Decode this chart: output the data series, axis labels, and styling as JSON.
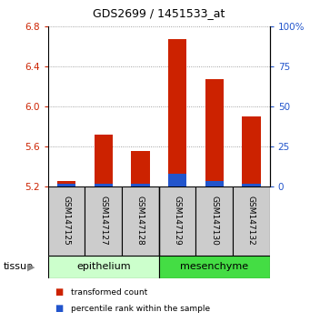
{
  "title": "GDS2699 / 1451533_at",
  "samples": [
    "GSM147125",
    "GSM147127",
    "GSM147128",
    "GSM147129",
    "GSM147130",
    "GSM147132"
  ],
  "red_values": [
    5.25,
    5.72,
    5.55,
    6.68,
    6.27,
    5.9
  ],
  "blue_values": [
    5.22,
    5.22,
    5.22,
    5.32,
    5.25,
    5.22
  ],
  "base": 5.2,
  "ylim_left": [
    5.2,
    6.8
  ],
  "ylim_right": [
    0,
    100
  ],
  "yticks_left": [
    5.2,
    5.6,
    6.0,
    6.4,
    6.8
  ],
  "yticks_right": [
    0,
    25,
    50,
    75,
    100
  ],
  "ytick_labels_right": [
    "0",
    "25",
    "50",
    "75",
    "100%"
  ],
  "legend_items": [
    {
      "label": "transformed count",
      "color": "#cc2200"
    },
    {
      "label": "percentile rank within the sample",
      "color": "#2255cc"
    }
  ],
  "red_color": "#cc2200",
  "blue_color": "#2255cc",
  "bar_width": 0.5,
  "grid_color": "#888888",
  "epithelium_color": "#ccffcc",
  "mesenchyme_color": "#44dd44",
  "sample_box_color": "#cccccc"
}
